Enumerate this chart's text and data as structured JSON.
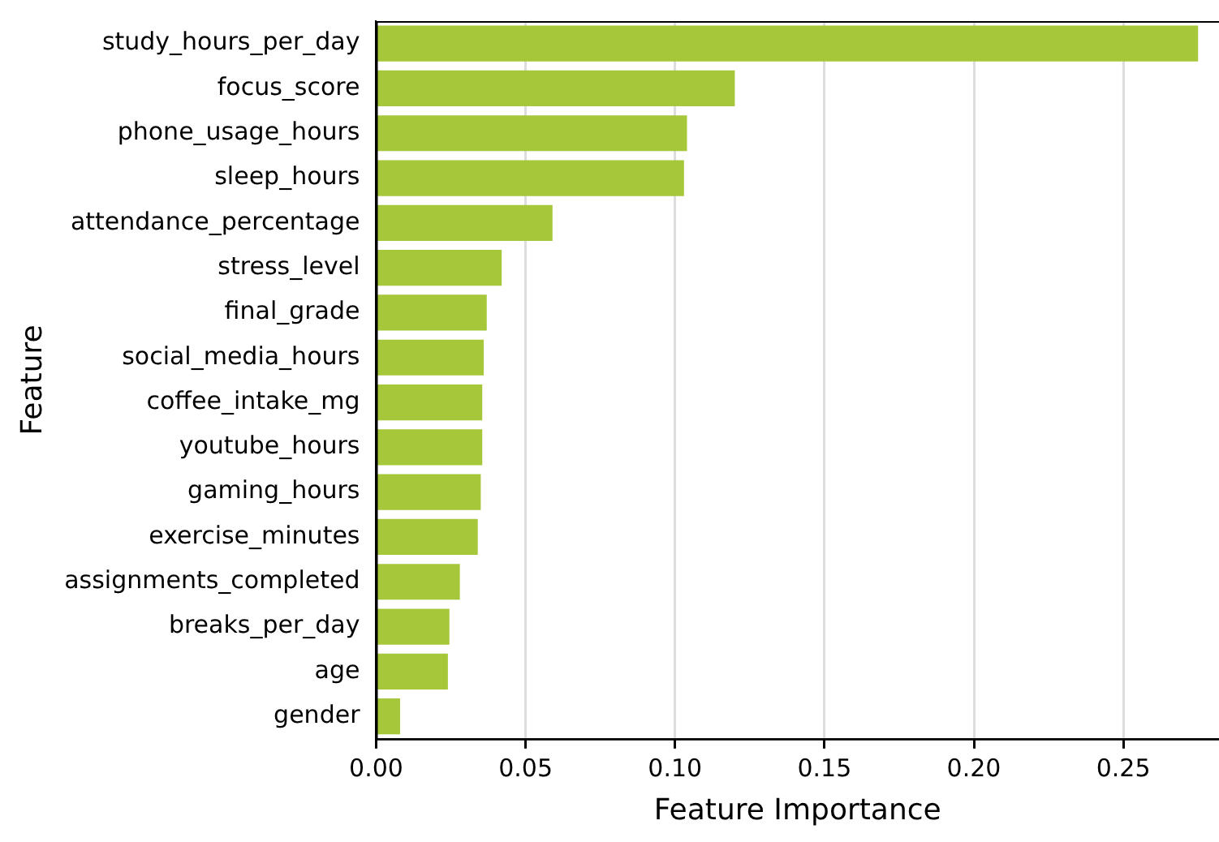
{
  "chart_data": {
    "type": "bar",
    "orientation": "horizontal",
    "xlabel": "Feature Importance",
    "ylabel": "Feature",
    "categories": [
      "study_hours_per_day",
      "focus_score",
      "phone_usage_hours",
      "sleep_hours",
      "attendance_percentage",
      "stress_level",
      "final_grade",
      "social_media_hours",
      "coffee_intake_mg",
      "youtube_hours",
      "gaming_hours",
      "exercise_minutes",
      "assignments_completed",
      "breaks_per_day",
      "age",
      "gender"
    ],
    "values": [
      0.275,
      0.12,
      0.104,
      0.103,
      0.059,
      0.042,
      0.037,
      0.036,
      0.0355,
      0.0355,
      0.035,
      0.034,
      0.028,
      0.0245,
      0.024,
      0.008
    ],
    "color": "#a5c739",
    "xlim": [
      0,
      0.282
    ],
    "xticks": [
      {
        "value": 0,
        "label": "0.00"
      },
      {
        "value": 0.05,
        "label": "0.05"
      },
      {
        "value": 0.1,
        "label": "0.10"
      },
      {
        "value": 0.15,
        "label": "0.15"
      },
      {
        "value": 0.2,
        "label": "0.20"
      },
      {
        "value": 0.25,
        "label": "0.25"
      }
    ],
    "grid": "x",
    "legend": false
  }
}
